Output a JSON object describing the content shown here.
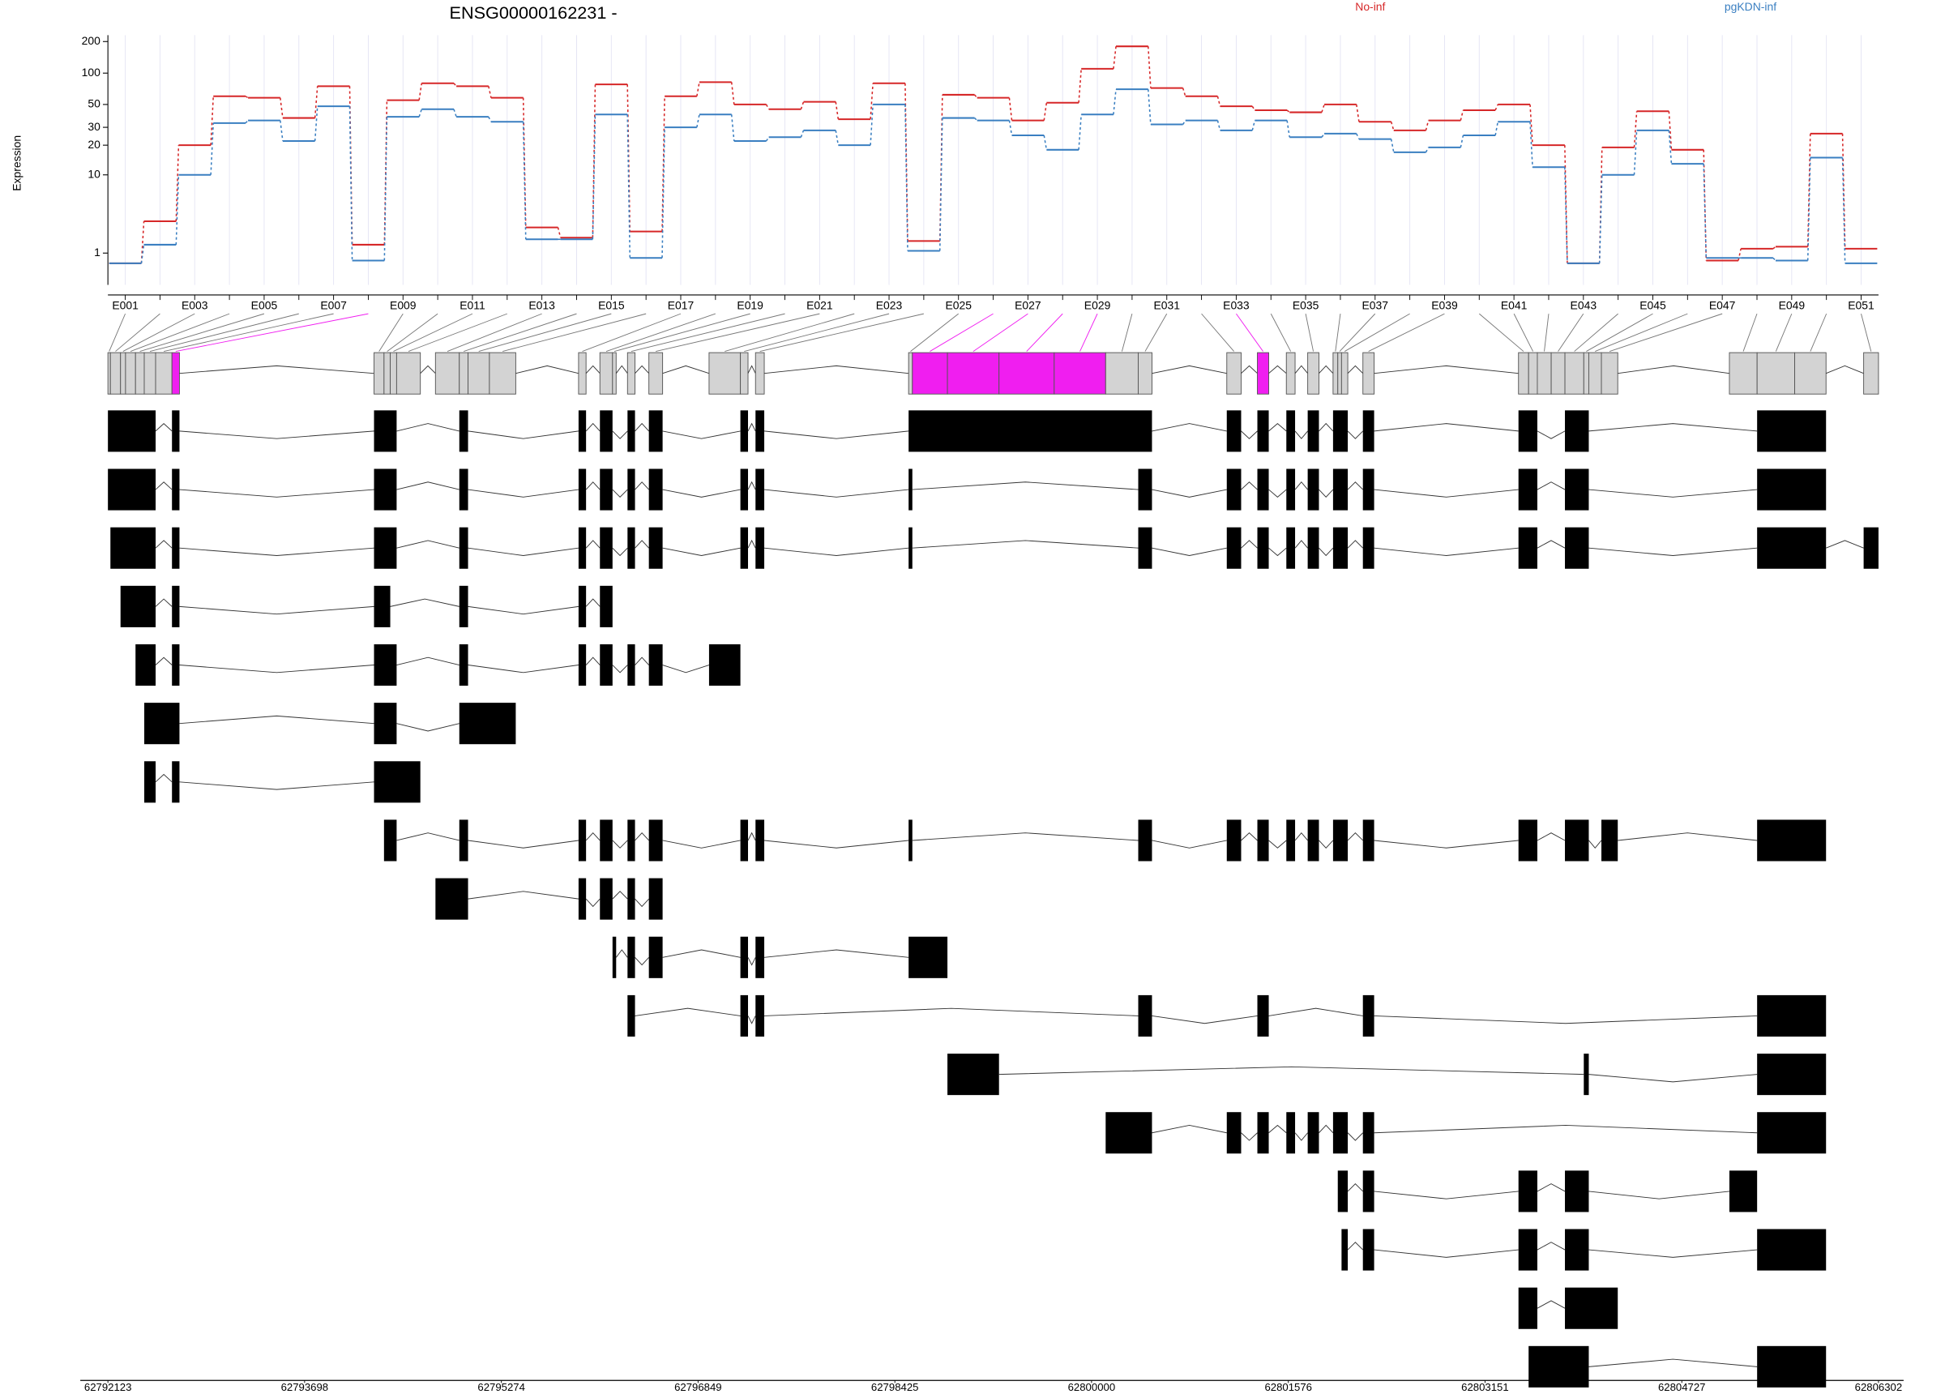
{
  "chart_data": {
    "type": "line",
    "title": "ENSG00000162231 -",
    "y_label": "Expression",
    "yscale": "log1p",
    "ylim": [
      0,
      230
    ],
    "yticks": [
      1,
      10,
      20,
      30,
      50,
      100,
      200
    ],
    "grid": true,
    "categories": [
      "E001",
      null,
      "E003",
      null,
      "E005",
      null,
      "E007",
      null,
      "E009",
      null,
      "E011",
      null,
      "E013",
      null,
      "E015",
      null,
      "E017",
      null,
      "E019",
      null,
      "E021",
      null,
      "E023",
      null,
      "E025",
      null,
      "E027",
      null,
      "E029",
      null,
      "E031",
      null,
      "E033",
      null,
      "E035",
      null,
      "E037",
      null,
      "E039",
      null,
      "E041",
      null,
      "E043",
      null,
      "E045",
      null,
      "E047",
      null,
      "E049",
      null,
      "E051"
    ],
    "series": [
      {
        "name": "No-inf",
        "color": "#d62728",
        "values": [
          0.6,
          3,
          20,
          60,
          58,
          37,
          75,
          1.4,
          55,
          80,
          75,
          58,
          2.5,
          1.8,
          78,
          2.2,
          60,
          82,
          50,
          45,
          53,
          36,
          80,
          1.6,
          62,
          58,
          35,
          52,
          110,
          180,
          72,
          60,
          48,
          44,
          42,
          50,
          34,
          28,
          35,
          44,
          50,
          20,
          0.6,
          19,
          43,
          18,
          0.7,
          1.2,
          1.3,
          26,
          1.2
        ]
      },
      {
        "name": "pgKDN-inf",
        "color": "#3a7fc1",
        "values": [
          0.6,
          1.4,
          10,
          33,
          35,
          22,
          48,
          0.7,
          38,
          45,
          38,
          34,
          1.7,
          1.7,
          40,
          0.8,
          30,
          40,
          22,
          24,
          28,
          20,
          50,
          1.1,
          37,
          35,
          25,
          18,
          40,
          70,
          32,
          35,
          28,
          35,
          24,
          26,
          23,
          17,
          19,
          25,
          34,
          12,
          0.6,
          10,
          28,
          13,
          0.8,
          0.8,
          0.7,
          15,
          0.6
        ]
      }
    ],
    "xlim": [
      62792123,
      62806302
    ],
    "xticks": [
      62792123,
      62793698,
      62795274,
      62796849,
      62798425,
      62800000,
      62801576,
      62803151,
      62804727,
      62806302
    ],
    "exon_color": "#d3d3d3",
    "significant_color": "#f01ef0",
    "transcript_color": "#000000",
    "significant": [
      7,
      25,
      26,
      27,
      28,
      32
    ],
    "exons": [
      [
        62792123,
        62792143
      ],
      [
        62792143,
        62792224
      ],
      [
        62792224,
        62792264
      ],
      [
        62792264,
        62792344
      ],
      [
        62792344,
        62792414
      ],
      [
        62792414,
        62792505
      ],
      [
        62792505,
        62792636
      ],
      [
        62792636,
        62792696
      ],
      [
        62794254,
        62794334
      ],
      [
        62794334,
        62794384
      ],
      [
        62794384,
        62794435
      ],
      [
        62794435,
        62794625
      ],
      [
        62794746,
        62794937
      ],
      [
        62794937,
        62795007
      ],
      [
        62795007,
        62795178
      ],
      [
        62795178,
        62795389
      ],
      [
        62795892,
        62795952
      ],
      [
        62796063,
        62796164
      ],
      [
        62796164,
        62796193
      ],
      [
        62796284,
        62796344
      ],
      [
        62796455,
        62796565
      ],
      [
        62796937,
        62797188
      ],
      [
        62797188,
        62797249
      ],
      [
        62797309,
        62797379
      ],
      [
        62798535,
        62798565
      ],
      [
        62798565,
        62798846
      ],
      [
        62798846,
        62799259
      ],
      [
        62799259,
        62799701
      ],
      [
        62799701,
        62800113
      ],
      [
        62800113,
        62800374
      ],
      [
        62800374,
        62800484
      ],
      [
        62801083,
        62801198
      ],
      [
        62801328,
        62801419
      ],
      [
        62801560,
        62801630
      ],
      [
        62801731,
        62801821
      ],
      [
        62801934,
        62801972
      ],
      [
        62801972,
        62802002
      ],
      [
        62802002,
        62802052
      ],
      [
        62802173,
        62802263
      ],
      [
        62803419,
        62803500
      ],
      [
        62803500,
        62803570
      ],
      [
        62803570,
        62803681
      ],
      [
        62803681,
        62803791
      ],
      [
        62803791,
        62803942
      ],
      [
        62803942,
        62803982
      ],
      [
        62803982,
        62804083
      ],
      [
        62804083,
        62804214
      ],
      [
        62805108,
        62805330
      ],
      [
        62805330,
        62805631
      ],
      [
        62805631,
        62805882
      ],
      [
        62806183,
        62806302
      ]
    ],
    "transcripts": [
      [
        [
          0,
          5
        ],
        [
          7,
          7
        ],
        [
          8,
          10
        ],
        [
          13,
          13
        ],
        [
          16,
          16
        ],
        [
          17,
          17
        ],
        [
          19,
          19
        ],
        [
          20,
          20
        ],
        [
          22,
          22
        ],
        [
          23,
          23
        ],
        [
          24,
          30
        ],
        [
          31,
          31
        ],
        [
          32,
          32
        ],
        [
          33,
          33
        ],
        [
          34,
          34
        ],
        [
          35,
          37
        ],
        [
          38,
          38
        ],
        [
          39,
          40
        ],
        [
          43,
          44
        ],
        [
          48,
          49
        ]
      ],
      [
        [
          0,
          5
        ],
        [
          7,
          7
        ],
        [
          8,
          10
        ],
        [
          13,
          13
        ],
        [
          16,
          16
        ],
        [
          17,
          17
        ],
        [
          19,
          19
        ],
        [
          20,
          20
        ],
        [
          22,
          22
        ],
        [
          23,
          23
        ],
        [
          24,
          24
        ],
        [
          30,
          30
        ],
        [
          31,
          31
        ],
        [
          32,
          32
        ],
        [
          33,
          33
        ],
        [
          34,
          34
        ],
        [
          35,
          37
        ],
        [
          38,
          38
        ],
        [
          39,
          40
        ],
        [
          43,
          44
        ],
        [
          48,
          49
        ]
      ],
      [
        [
          1,
          5
        ],
        [
          7,
          7
        ],
        [
          8,
          10
        ],
        [
          13,
          13
        ],
        [
          16,
          16
        ],
        [
          17,
          17
        ],
        [
          19,
          19
        ],
        [
          20,
          20
        ],
        [
          22,
          22
        ],
        [
          23,
          23
        ],
        [
          24,
          24
        ],
        [
          30,
          30
        ],
        [
          31,
          31
        ],
        [
          32,
          32
        ],
        [
          33,
          33
        ],
        [
          34,
          34
        ],
        [
          35,
          37
        ],
        [
          38,
          38
        ],
        [
          39,
          40
        ],
        [
          43,
          44
        ],
        [
          48,
          49
        ],
        [
          50,
          50
        ]
      ],
      [
        [
          2,
          5
        ],
        [
          7,
          7
        ],
        [
          8,
          9
        ],
        [
          13,
          13
        ],
        [
          16,
          16
        ],
        [
          17,
          17
        ]
      ],
      [
        [
          4,
          5
        ],
        [
          7,
          7
        ],
        [
          8,
          10
        ],
        [
          13,
          13
        ],
        [
          16,
          16
        ],
        [
          17,
          17
        ],
        [
          19,
          19
        ],
        [
          20,
          20
        ],
        [
          21,
          21
        ]
      ],
      [
        [
          5,
          7
        ],
        [
          8,
          10
        ],
        [
          13,
          15
        ]
      ],
      [
        [
          5,
          5
        ],
        [
          7,
          7
        ],
        [
          8,
          11
        ]
      ],
      [
        [
          9,
          10
        ],
        [
          13,
          13
        ],
        [
          16,
          16
        ],
        [
          17,
          17
        ],
        [
          19,
          19
        ],
        [
          20,
          20
        ],
        [
          22,
          22
        ],
        [
          23,
          23
        ],
        [
          24,
          24
        ],
        [
          30,
          30
        ],
        [
          31,
          31
        ],
        [
          32,
          32
        ],
        [
          33,
          33
        ],
        [
          34,
          34
        ],
        [
          35,
          37
        ],
        [
          38,
          38
        ],
        [
          39,
          40
        ],
        [
          43,
          44
        ],
        [
          46,
          46
        ],
        [
          48,
          49
        ]
      ],
      [
        [
          12,
          13
        ],
        [
          16,
          16
        ],
        [
          17,
          17
        ],
        [
          19,
          19
        ],
        [
          20,
          20
        ]
      ],
      [
        [
          18,
          18
        ],
        [
          19,
          19
        ],
        [
          20,
          20
        ],
        [
          22,
          22
        ],
        [
          23,
          23
        ],
        [
          24,
          25
        ]
      ],
      [
        [
          19,
          19
        ],
        [
          22,
          22
        ],
        [
          23,
          23
        ],
        [
          30,
          30
        ],
        [
          32,
          32
        ],
        [
          38,
          38
        ],
        [
          48,
          49
        ]
      ],
      [
        [
          26,
          26
        ],
        [
          44,
          44
        ],
        [
          48,
          49
        ]
      ],
      [
        [
          29,
          30
        ],
        [
          31,
          31
        ],
        [
          32,
          32
        ],
        [
          33,
          33
        ],
        [
          34,
          34
        ],
        [
          35,
          37
        ],
        [
          38,
          38
        ],
        [
          48,
          49
        ]
      ],
      [
        [
          36,
          37
        ],
        [
          38,
          38
        ],
        [
          39,
          40
        ],
        [
          43,
          44
        ],
        [
          47,
          47
        ]
      ],
      [
        [
          37,
          37
        ],
        [
          38,
          38
        ],
        [
          39,
          40
        ],
        [
          43,
          44
        ],
        [
          48,
          49
        ]
      ],
      [
        [
          39,
          40
        ],
        [
          43,
          46
        ]
      ],
      [
        [
          40,
          44
        ],
        [
          48,
          49
        ]
      ]
    ]
  }
}
